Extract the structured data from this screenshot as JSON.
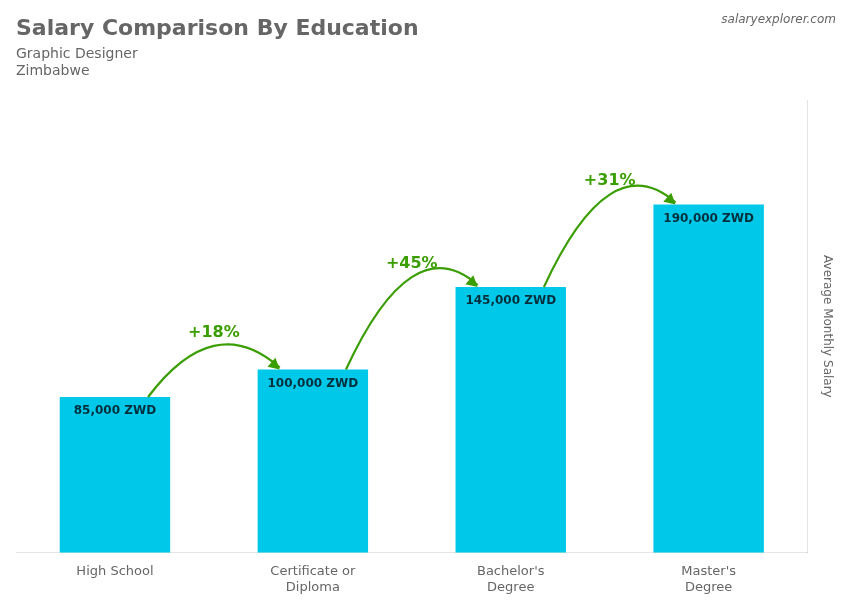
{
  "chart_data": {
    "type": "bar",
    "title": "Salary Comparison By Education",
    "subtitle": [
      "Graphic Designer",
      "Zimbabwe"
    ],
    "source": "salaryexplorer.com",
    "ylabel": "Average Monthly Salary",
    "categories": [
      "High School",
      "Certificate or\nDiploma",
      "Bachelor's\nDegree",
      "Master's\nDegree"
    ],
    "values": [
      85000,
      100000,
      145000,
      190000
    ],
    "value_labels": [
      "85,000 ZWD",
      "100,000 ZWD",
      "145,000 ZWD",
      "190,000 ZWD"
    ],
    "data_labels": true,
    "annotations": [
      "+18%",
      "+45%",
      "+31%"
    ],
    "color": "#00c8e8",
    "ylim": [
      0,
      247000
    ],
    "tick_labels": "x",
    "grid": false
  }
}
